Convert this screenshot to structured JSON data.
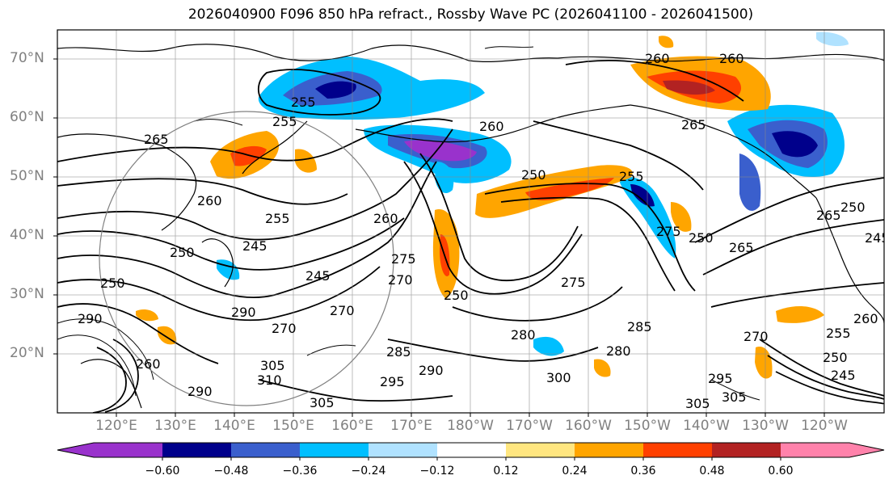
{
  "title": "2026040900 F096 850 hPa refract., Rossby Wave PC (2026041100 - 2026041500)",
  "lat_labels": [
    "70°N",
    "60°N",
    "50°N",
    "40°N",
    "30°N",
    "20°N"
  ],
  "lon_labels": [
    "120°E",
    "130°E",
    "140°E",
    "150°E",
    "160°E",
    "170°E",
    "180°W",
    "170°W",
    "160°W",
    "150°W",
    "140°W",
    "130°W",
    "120°W"
  ],
  "colorbar": {
    "ticks": [
      "−0.60",
      "−0.48",
      "−0.36",
      "−0.24",
      "−0.12",
      "0.12",
      "0.24",
      "0.36",
      "0.48",
      "0.60"
    ],
    "colors": [
      "#9932cc",
      "#00008b",
      "#3a5fcd",
      "#00bfff",
      "#b0e2ff",
      "#ffffff",
      "#ffe680",
      "#ffa500",
      "#ff4000",
      "#b22222",
      "#ff82ab"
    ]
  },
  "contour_labels": [
    "265",
    "255",
    "255",
    "260",
    "265",
    "260",
    "255",
    "250",
    "245",
    "250",
    "245",
    "290",
    "290",
    "270",
    "305",
    "310",
    "260",
    "290",
    "305",
    "260",
    "270",
    "275",
    "275",
    "250",
    "280",
    "285",
    "295",
    "290",
    "300",
    "275",
    "265",
    "250",
    "260",
    "245",
    "255",
    "250",
    "260",
    "265",
    "270",
    "255",
    "250",
    "245",
    "295",
    "305",
    "305",
    "285",
    "280",
    "260",
    "250",
    "270"
  ],
  "map_legend": {
    "shading": "Rossby Wave PC",
    "contours": "850 hPa refractivity"
  }
}
